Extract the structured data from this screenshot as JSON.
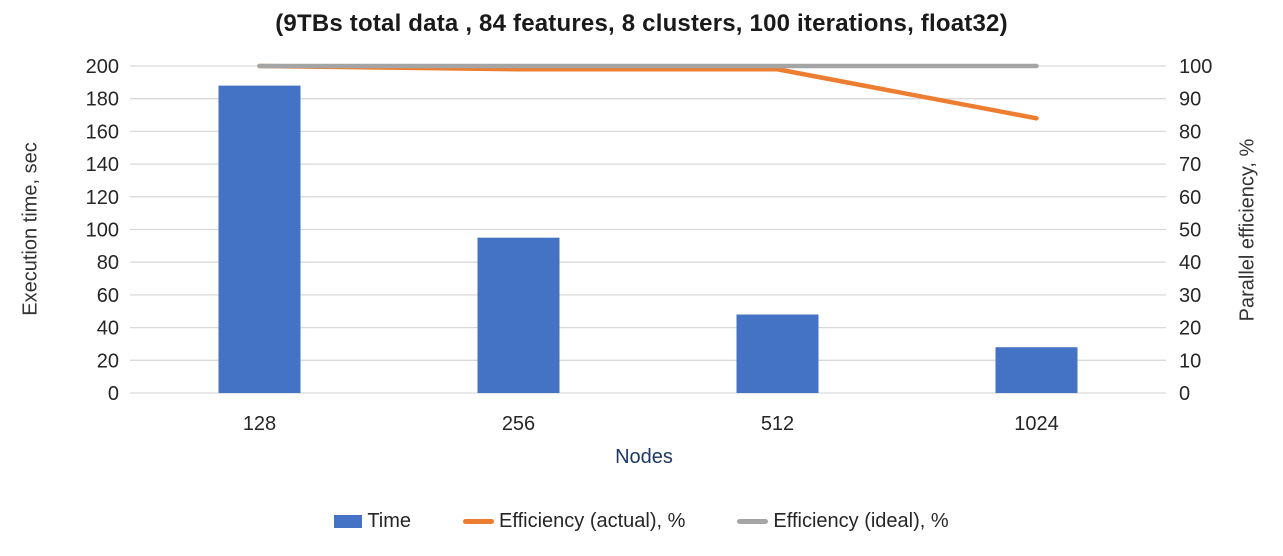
{
  "chart": {
    "title": "(9TBs total data , 84 features, 8 clusters, 100 iterations, float32)",
    "x_axis_title": "Nodes",
    "left_axis_title": "Execution time, sec",
    "right_axis_title": "Parallel efficiency, %"
  },
  "chart_data": {
    "type": "bar",
    "subtype": "combo-bar-line-dual-axis",
    "title": "(9TBs total data , 84 features, 8 clusters, 100 iterations, float32)",
    "xlabel": "Nodes",
    "categories": [
      "128",
      "256",
      "512",
      "1024"
    ],
    "series": [
      {
        "name": "Time",
        "type": "bar",
        "axis": "left",
        "color": "#4472C4",
        "values": [
          188,
          95,
          48,
          28
        ]
      },
      {
        "name": "Efficiency (actual), %",
        "type": "line",
        "axis": "right",
        "color": "#ED7D31",
        "values": [
          100,
          99,
          99,
          84
        ]
      },
      {
        "name": "Efficiency (ideal), %",
        "type": "line",
        "axis": "right",
        "color": "#A5A5A5",
        "values": [
          100,
          100,
          100,
          100
        ]
      }
    ],
    "left_axis": {
      "label": "Execution time, sec",
      "min": 0,
      "max": 200,
      "step": 20,
      "ticks": [
        "0",
        "20",
        "40",
        "60",
        "80",
        "100",
        "120",
        "140",
        "160",
        "180",
        "200"
      ]
    },
    "right_axis": {
      "label": "Parallel efficiency, %",
      "min": 0,
      "max": 100,
      "step": 10,
      "ticks": [
        "0",
        "10",
        "20",
        "30",
        "40",
        "50",
        "60",
        "70",
        "80",
        "90",
        "100"
      ]
    },
    "grid": true,
    "gridline_color": "#D9D9D9",
    "legend_position": "bottom"
  },
  "colors": {
    "bar_blue": "#4472C4",
    "line_orange": "#ED7D31",
    "line_gray": "#A5A5A5",
    "gridline": "#D9D9D9",
    "x_title_navy": "#1F3864",
    "text_dark": "#262626"
  }
}
